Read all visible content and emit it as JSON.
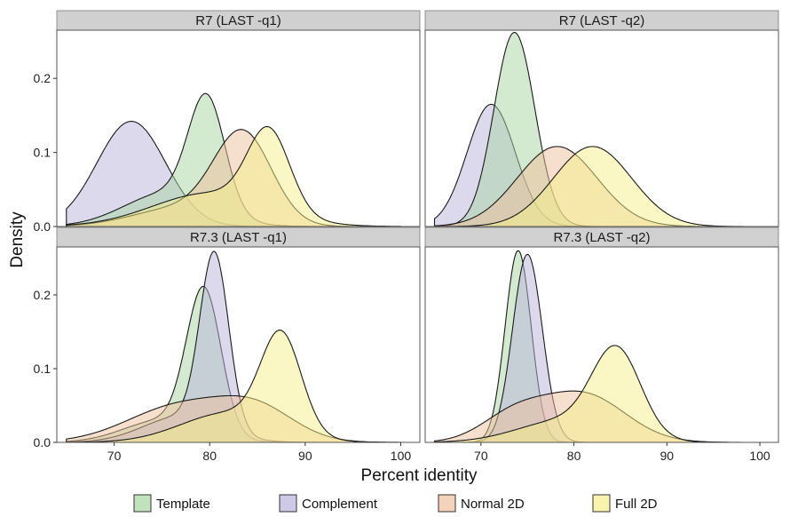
{
  "chart_data": {
    "type": "area",
    "xlabel": "Percent identity",
    "ylabel": "Density",
    "xlim": [
      64,
      102
    ],
    "ylim": [
      0,
      0.265
    ],
    "x_ticks": [
      70,
      80,
      90,
      100
    ],
    "y_ticks": [
      0.0,
      0.1,
      0.2
    ],
    "y_tick_labels": [
      "0.0",
      "0.1",
      "0.2"
    ],
    "grid": false,
    "legend_position": "bottom",
    "legend": [
      {
        "name": "Template",
        "color": "#a8d5a2"
      },
      {
        "name": "Complement",
        "color": "#b9b4dc"
      },
      {
        "name": "Normal 2D",
        "color": "#f0c09c"
      },
      {
        "name": "Full 2D",
        "color": "#f6f08a"
      }
    ],
    "panels": [
      {
        "title": "R7 (LAST -q1)",
        "series": [
          {
            "name": "Complement",
            "components": [
              [
                71.8,
                3.6,
                0.142
              ]
            ]
          },
          {
            "name": "Template",
            "components": [
              [
                79.7,
                1.9,
                0.15
              ],
              [
                75.5,
                4.5,
                0.045
              ]
            ]
          },
          {
            "name": "Normal 2D",
            "components": [
              [
                83.5,
                3.0,
                0.12
              ],
              [
                77,
                5,
                0.025
              ]
            ]
          },
          {
            "name": "Full 2D",
            "components": [
              [
                86.2,
                2.2,
                0.108
              ],
              [
                80,
                6,
                0.045
              ]
            ]
          }
        ]
      },
      {
        "title": "R7 (LAST -q2)",
        "series": [
          {
            "name": "Complement",
            "components": [
              [
                71.1,
                2.6,
                0.165
              ]
            ]
          },
          {
            "name": "Template",
            "components": [
              [
                73.6,
                2.2,
                0.262
              ]
            ]
          },
          {
            "name": "Normal 2D",
            "components": [
              [
                78.2,
                4.3,
                0.108
              ]
            ]
          },
          {
            "name": "Full 2D",
            "components": [
              [
                82.0,
                4.2,
                0.108
              ]
            ]
          }
        ]
      },
      {
        "title": "R7.3 (LAST -q1)",
        "series": [
          {
            "name": "Template",
            "components": [
              [
                79.4,
                1.8,
                0.195
              ],
              [
                75,
                4,
                0.03
              ]
            ]
          },
          {
            "name": "Complement",
            "components": [
              [
                80.5,
                1.5,
                0.235
              ],
              [
                77,
                4,
                0.035
              ]
            ]
          },
          {
            "name": "Normal 2D",
            "components": [
              [
                77.0,
                5.5,
                0.05
              ],
              [
                85,
                4,
                0.04
              ]
            ]
          },
          {
            "name": "Full 2D",
            "components": [
              [
                87.5,
                2.1,
                0.13
              ],
              [
                82,
                5,
                0.04
              ]
            ]
          }
        ]
      },
      {
        "title": "R7.3 (LAST -q2)",
        "series": [
          {
            "name": "Template",
            "components": [
              [
                74.0,
                1.4,
                0.26
              ]
            ]
          },
          {
            "name": "Complement",
            "components": [
              [
                75.0,
                1.6,
                0.255
              ]
            ]
          },
          {
            "name": "Normal 2D",
            "components": [
              [
                81.0,
                4.5,
                0.065
              ],
              [
                73.5,
                3.5,
                0.035
              ]
            ]
          },
          {
            "name": "Full 2D",
            "components": [
              [
                84.6,
                2.6,
                0.115
              ],
              [
                79,
                5,
                0.03
              ]
            ]
          }
        ]
      }
    ]
  }
}
